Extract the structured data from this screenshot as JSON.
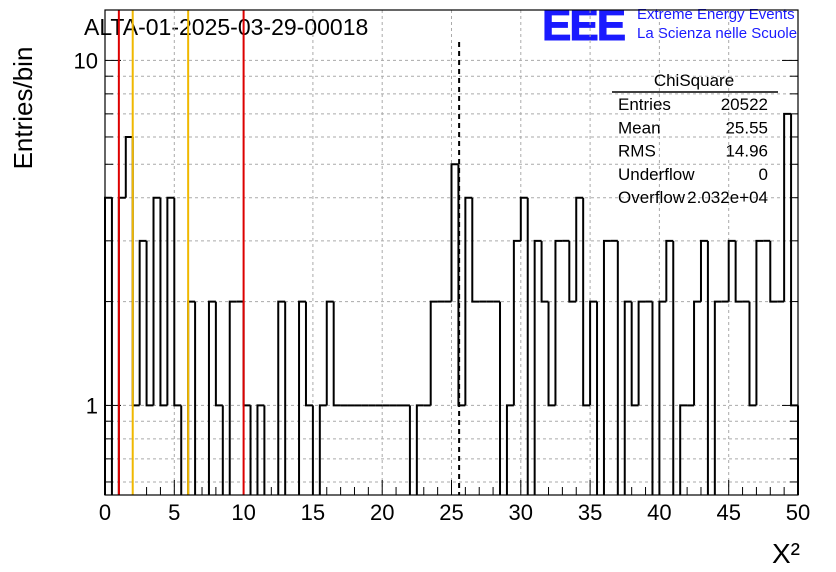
{
  "header": {
    "title": "ALTA-01-2025-03-29-00018",
    "logo_text": "EEE",
    "org_line1": "Extreme Energy Events",
    "org_line2": "La Scienza nelle Scuole"
  },
  "stats_box": {
    "name": "ChiSquare",
    "rows": [
      {
        "label": "Entries",
        "value": "20522"
      },
      {
        "label": "Mean",
        "value": "25.55"
      },
      {
        "label": "RMS",
        "value": "14.96"
      },
      {
        "label": "Underflow",
        "value": "0"
      },
      {
        "label": "Overflow",
        "value": "2.032e+04"
      }
    ]
  },
  "colors": {
    "histogram": "#000000",
    "red_line": "#dd0000",
    "yellow_line": "#f0b800",
    "grid": "#aaaaaa",
    "logo": "#1a1aff"
  },
  "chart_data": {
    "type": "bar",
    "histtype": "step",
    "title": "ALTA-01-2025-03-29-00018",
    "xlabel": "X²",
    "ylabel": "Entries/bin",
    "xlim": [
      0,
      50
    ],
    "ylim": [
      0.55,
      14
    ],
    "yscale": "log",
    "bin_width": 0.5,
    "x_ticks": [
      "0",
      "5",
      "10",
      "15",
      "20",
      "25",
      "30",
      "35",
      "40",
      "45",
      "50"
    ],
    "y_ticks": [
      {
        "value": 1,
        "label": "1"
      },
      {
        "value": 10,
        "label": "10"
      }
    ],
    "grid": true,
    "values": [
      4,
      0,
      4,
      6,
      1,
      3,
      1,
      4,
      1,
      4,
      1,
      0,
      2,
      0,
      0,
      2,
      1,
      0,
      2,
      2,
      1,
      0,
      1,
      0,
      0,
      2,
      0,
      0,
      2,
      1,
      0,
      1,
      2,
      1,
      1,
      1,
      1,
      1,
      1,
      1,
      1,
      1,
      1,
      1,
      0,
      1,
      1,
      2,
      2,
      2,
      5,
      1,
      4,
      2,
      2,
      2,
      2,
      0,
      1,
      3,
      4,
      0,
      3,
      2,
      1,
      3,
      3,
      2,
      4,
      1,
      2,
      0,
      3,
      3,
      0,
      2,
      1,
      2,
      2,
      0,
      2,
      3,
      0,
      1,
      1,
      2,
      3,
      0,
      2,
      2,
      3,
      2,
      2,
      1,
      3,
      3,
      2,
      2,
      7,
      1
    ],
    "vertical_lines": [
      {
        "x": 1,
        "color": "red",
        "style": "solid"
      },
      {
        "x": 2,
        "color": "yellow",
        "style": "solid"
      },
      {
        "x": 6,
        "color": "yellow",
        "style": "solid"
      },
      {
        "x": 10,
        "color": "red",
        "style": "solid"
      },
      {
        "x": 25.55,
        "color": "black",
        "style": "dashed"
      }
    ]
  }
}
